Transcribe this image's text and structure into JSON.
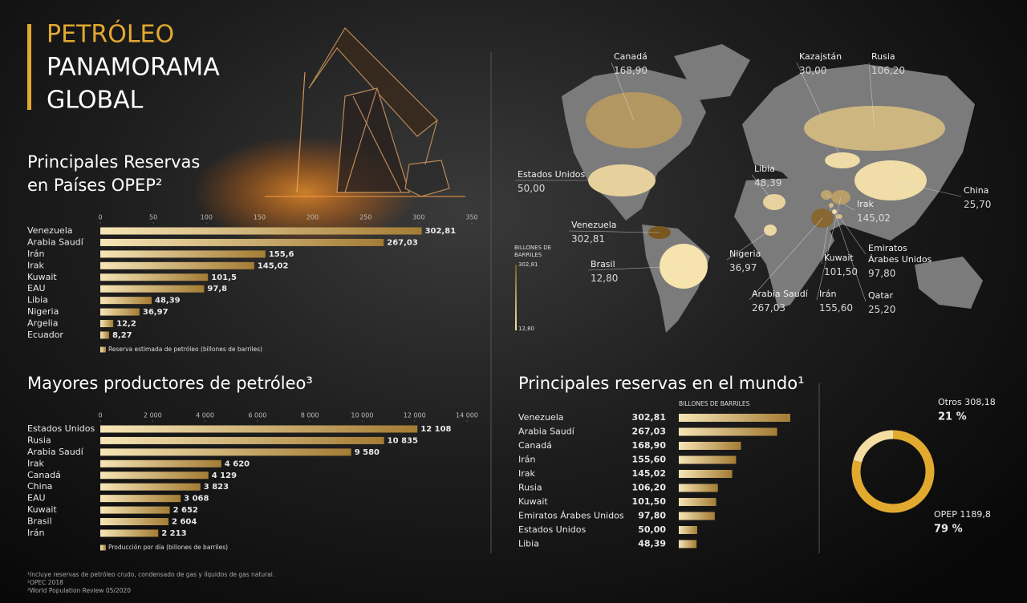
{
  "header": {
    "lines": [
      "PETRÓLEO",
      "PANAMORAMA",
      "GLOBAL"
    ]
  },
  "chart_data": [
    {
      "type": "bar",
      "title": "Principales Reservas en Países OPEP²",
      "categories": [
        "Venezuela",
        "Arabia Saudí",
        "Irán",
        "Irak",
        "Kuwait",
        "EAU",
        "Libia",
        "Nigeria",
        "Argelia",
        "Ecuador"
      ],
      "values": [
        302.81,
        267.03,
        155.6,
        145.02,
        101.5,
        97.8,
        48.39,
        36.97,
        12.2,
        8.27
      ],
      "value_labels": [
        "302,81",
        "267,03",
        "155,6",
        "145,02",
        "101,5",
        "97,8",
        "48,39",
        "36,97",
        "12,2",
        "8,27"
      ],
      "xlim": [
        0,
        350
      ],
      "xticks": [
        0,
        50,
        100,
        150,
        200,
        250,
        300,
        350
      ],
      "legend": "Reserva estimada de petróleo (billones de barriles)",
      "colors": [
        "#f6e5b6",
        "#a47c34"
      ]
    },
    {
      "type": "bar",
      "title": "Mayores productores de petróleo³",
      "categories": [
        "Estados Unidos",
        "Rusia",
        "Arabia Saudí",
        "Irak",
        "Canadá",
        "China",
        "EAU",
        "Kuwait",
        "Brasil",
        "Irán"
      ],
      "values": [
        12108,
        10835,
        9580,
        4620,
        4129,
        3823,
        3068,
        2652,
        2604,
        2213
      ],
      "value_labels": [
        "12 108",
        "10 835",
        "9 580",
        "4 620",
        "4 129",
        "3 823",
        "3 068",
        "2 652",
        "2 604",
        "2 213"
      ],
      "xlim": [
        0,
        14000
      ],
      "xticks": [
        0,
        {
          "value": 2000,
          "label": "2 000"
        },
        {
          "value": 4000,
          "label": "4 000"
        },
        {
          "value": 6000,
          "label": "6 000"
        },
        {
          "value": 8000,
          "label": "8 000"
        },
        {
          "value": 10000,
          "label": "10 000"
        },
        {
          "value": 12000,
          "label": "12 000"
        },
        {
          "value": 14000,
          "label": "14 000"
        }
      ],
      "legend": "Producción por día (billones de barriles)",
      "colors": [
        "#f6e5b6",
        "#a47c34"
      ]
    },
    {
      "type": "bar",
      "title": "Principales reservas en el mundo¹",
      "value_axis_label": "BILLONES DE BARRILES",
      "categories": [
        "Venezuela",
        "Arabia Saudí",
        "Canadá",
        "Irán",
        "Irak",
        "Rusia",
        "Kuwait",
        "Emiratos Árabes Unidos",
        "Estados Unidos",
        "Libia"
      ],
      "values": [
        302.81,
        267.03,
        168.9,
        155.6,
        145.02,
        106.2,
        101.5,
        97.8,
        50,
        48.39
      ],
      "value_labels": [
        "302,81",
        "267,03",
        "168,90",
        "155,60",
        "145,02",
        "106,20",
        "101,50",
        "97,80",
        "50,00",
        "48,39"
      ],
      "colors": [
        "#f6e5b6",
        "#a47c34"
      ]
    },
    {
      "type": "donut",
      "categories": [
        "Otros",
        "OPEP"
      ],
      "values": [
        308.18,
        1189.8
      ],
      "value_labels": [
        "308,18",
        "1189,8"
      ],
      "shares": [
        21,
        79
      ],
      "share_labels": [
        "21 %",
        "79 %"
      ],
      "colors": [
        "#f3dda2",
        "#e2a92f"
      ]
    },
    {
      "type": "map",
      "legend_title": "BILLONES DE BARRILES",
      "scale_ticks": [
        {
          "value": 302.81,
          "label": "302,81"
        },
        {
          "value": 12.8,
          "label": "12,80"
        }
      ],
      "scale_colors": [
        "#f6e3ae",
        "#7a5620"
      ],
      "categories": [
        "Canadá",
        "Kazajstán",
        "Rusia",
        "Estados Unidos",
        "Libia",
        "Irak",
        "China",
        "Venezuela",
        "Brasil",
        "Nigeria",
        "Emiratos Árabes Unidos",
        "Kuwait",
        "Arabia Saudí",
        "Irán",
        "Qatar"
      ],
      "values": [
        168.9,
        30,
        106.2,
        50,
        48.39,
        145.02,
        25.7,
        302.81,
        12.8,
        36.97,
        97.8,
        101.5,
        267.03,
        155.6,
        25.2
      ],
      "value_labels": [
        "168,90",
        "30,00",
        "106,20",
        "50,00",
        "48,39",
        "145,02",
        "25,70",
        "302,81",
        "12,80",
        "36,97",
        "97,80",
        "101,50",
        "267,03",
        "155,60",
        "25,20"
      ]
    }
  ],
  "footnotes": [
    "¹Incluye reservas de petróleo crudo, condensado de gas y líquidos de gas natural.",
    "²OPEC 2018",
    "³World Population Review 05/2020"
  ]
}
